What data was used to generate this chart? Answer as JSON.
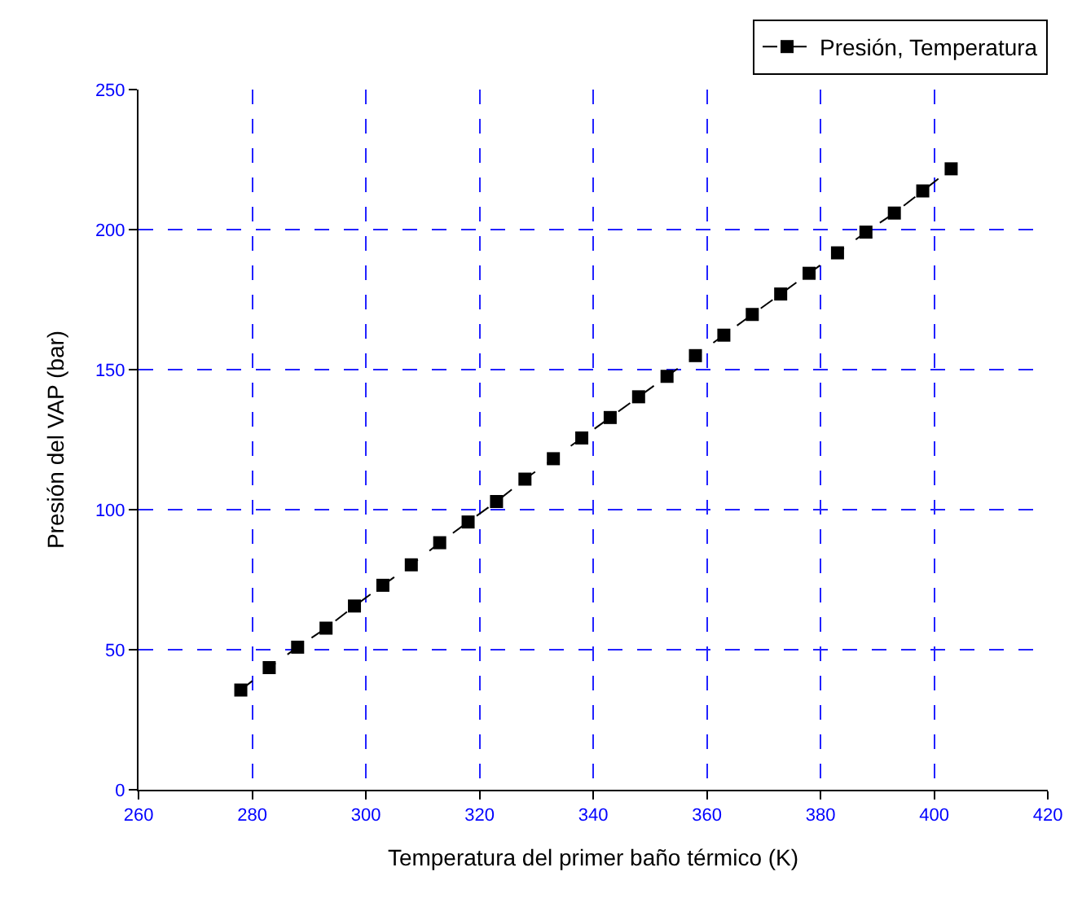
{
  "chart_data": {
    "type": "line",
    "xlabel": "Temperatura del primer baño térmico (K)",
    "ylabel": "Presión del VAP (bar)",
    "x": [
      278,
      283,
      288,
      293,
      298,
      303,
      308,
      313,
      318,
      323,
      328,
      333,
      338,
      343,
      348,
      353,
      358,
      363,
      368,
      373,
      378,
      383,
      388,
      393,
      398,
      403
    ],
    "series": [
      {
        "name": "Presión, Temperatura",
        "color": "#000000",
        "values": [
          35.6,
          43.6,
          50.9,
          57.7,
          65.6,
          73.0,
          80.3,
          88.2,
          95.6,
          102.9,
          110.9,
          118.2,
          125.6,
          132.9,
          140.3,
          147.6,
          155.0,
          162.3,
          169.7,
          177.0,
          184.4,
          191.7,
          199.1,
          205.9,
          213.8,
          221.7
        ]
      }
    ],
    "xlim": [
      260,
      420
    ],
    "xticks": [
      260,
      280,
      300,
      320,
      340,
      360,
      380,
      400,
      420
    ],
    "ylim": [
      0,
      250
    ],
    "yticks": [
      0,
      50,
      100,
      150,
      200,
      250
    ],
    "grid": true,
    "legend": "top right",
    "marker": "square",
    "line_style": "dashed"
  }
}
